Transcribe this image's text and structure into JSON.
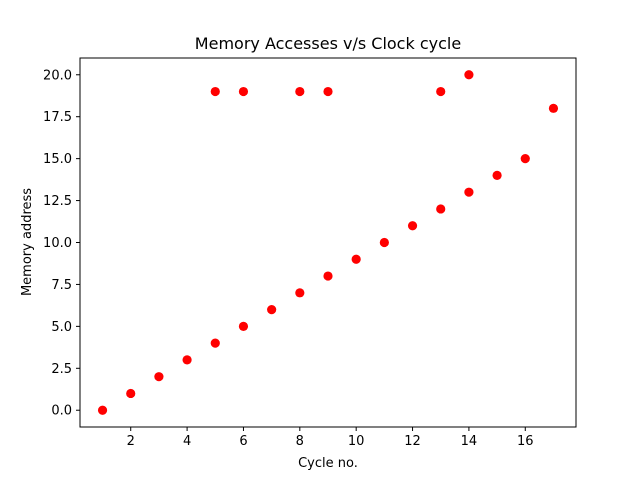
{
  "chart_data": {
    "type": "scatter",
    "title": "Memory Accesses  v/s  Clock cycle",
    "xlabel": "Cycle no.",
    "ylabel": "Memory address",
    "xlim": [
      0.2,
      17.8
    ],
    "ylim": [
      -1.0,
      21.0
    ],
    "x_ticks": [
      2,
      4,
      6,
      8,
      10,
      12,
      14,
      16
    ],
    "x_tick_labels": [
      "2",
      "4",
      "6",
      "8",
      "10",
      "12",
      "14",
      "16"
    ],
    "y_ticks": [
      0.0,
      2.5,
      5.0,
      7.5,
      10.0,
      12.5,
      15.0,
      17.5,
      20.0
    ],
    "y_tick_labels": [
      "0.0",
      "2.5",
      "5.0",
      "7.5",
      "10.0",
      "12.5",
      "15.0",
      "17.5",
      "20.0"
    ],
    "grid": false,
    "series": [
      {
        "color": "#ff0000",
        "marker": "circle",
        "points": [
          [
            1,
            0
          ],
          [
            2,
            1
          ],
          [
            3,
            2
          ],
          [
            4,
            3
          ],
          [
            5,
            4
          ],
          [
            5,
            19
          ],
          [
            6,
            5
          ],
          [
            6,
            19
          ],
          [
            7,
            6
          ],
          [
            8,
            7
          ],
          [
            8,
            19
          ],
          [
            9,
            8
          ],
          [
            9,
            19
          ],
          [
            10,
            9
          ],
          [
            11,
            10
          ],
          [
            12,
            11
          ],
          [
            13,
            12
          ],
          [
            13,
            19
          ],
          [
            14,
            13
          ],
          [
            14,
            20
          ],
          [
            15,
            14
          ],
          [
            16,
            15
          ],
          [
            17,
            18
          ]
        ]
      }
    ]
  }
}
